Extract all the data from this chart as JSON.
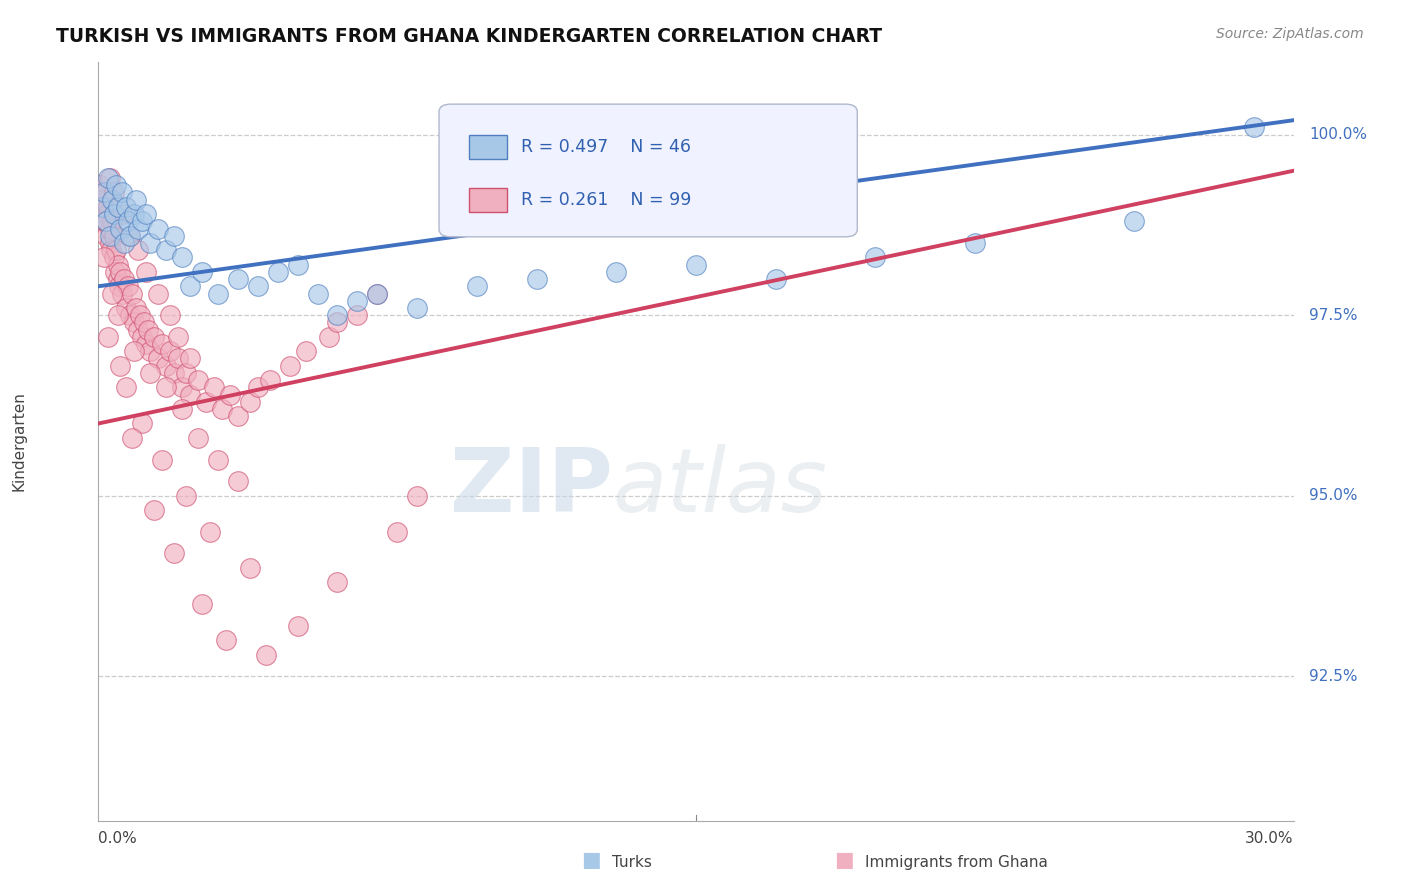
{
  "title": "TURKISH VS IMMIGRANTS FROM GHANA KINDERGARTEN CORRELATION CHART",
  "source_text": "Source: ZipAtlas.com",
  "ylabel": "Kindergarten",
  "blue_R": 0.497,
  "blue_N": 46,
  "pink_R": 0.261,
  "pink_N": 99,
  "blue_color": "#a8c8e8",
  "pink_color": "#f0b0c0",
  "blue_edge_color": "#5080c0",
  "pink_edge_color": "#d05070",
  "blue_line_color": "#4070c0",
  "pink_line_color": "#d04060",
  "watermark_zip": "ZIP",
  "watermark_atlas": "atlas",
  "x_min": 0.0,
  "x_max": 30.0,
  "y_min": 90.5,
  "y_max": 101.0,
  "y_ticks": [
    92.5,
    95.0,
    97.5,
    100.0
  ],
  "blue_points_x": [
    0.1,
    0.15,
    0.2,
    0.25,
    0.3,
    0.35,
    0.4,
    0.45,
    0.5,
    0.55,
    0.6,
    0.65,
    0.7,
    0.75,
    0.8,
    0.9,
    0.95,
    1.0,
    1.1,
    1.2,
    1.3,
    1.5,
    1.7,
    1.9,
    2.1,
    2.3,
    2.6,
    3.0,
    3.5,
    4.0,
    4.5,
    5.0,
    5.5,
    6.0,
    6.5,
    7.0,
    8.0,
    9.5,
    11.0,
    13.0,
    15.0,
    17.0,
    19.5,
    22.0,
    26.0,
    29.0
  ],
  "blue_points_y": [
    99.0,
    99.2,
    98.8,
    99.4,
    98.6,
    99.1,
    98.9,
    99.3,
    99.0,
    98.7,
    99.2,
    98.5,
    99.0,
    98.8,
    98.6,
    98.9,
    99.1,
    98.7,
    98.8,
    98.9,
    98.5,
    98.7,
    98.4,
    98.6,
    98.3,
    97.9,
    98.1,
    97.8,
    98.0,
    97.9,
    98.1,
    98.2,
    97.8,
    97.5,
    97.7,
    97.8,
    97.6,
    97.9,
    98.0,
    98.1,
    98.2,
    98.0,
    98.3,
    98.5,
    98.8,
    100.1
  ],
  "pink_points_x": [
    0.05,
    0.1,
    0.12,
    0.15,
    0.18,
    0.2,
    0.22,
    0.25,
    0.28,
    0.3,
    0.32,
    0.35,
    0.38,
    0.4,
    0.42,
    0.45,
    0.48,
    0.5,
    0.52,
    0.55,
    0.6,
    0.65,
    0.7,
    0.75,
    0.8,
    0.85,
    0.9,
    0.95,
    1.0,
    1.05,
    1.1,
    1.15,
    1.2,
    1.25,
    1.3,
    1.4,
    1.5,
    1.6,
    1.7,
    1.8,
    1.9,
    2.0,
    2.1,
    2.2,
    2.3,
    2.5,
    2.7,
    2.9,
    3.1,
    3.3,
    3.5,
    3.8,
    4.0,
    4.3,
    4.8,
    5.2,
    5.8,
    6.0,
    6.5,
    7.0,
    0.3,
    0.4,
    0.6,
    0.8,
    1.0,
    1.2,
    1.5,
    1.8,
    2.0,
    2.3,
    0.2,
    0.5,
    0.9,
    1.3,
    1.7,
    2.1,
    2.5,
    3.0,
    3.5,
    0.15,
    0.35,
    0.7,
    1.1,
    1.6,
    2.2,
    2.8,
    3.8,
    0.25,
    0.55,
    0.85,
    1.4,
    1.9,
    2.6,
    3.2,
    4.2,
    5.0,
    6.0,
    7.5,
    8.0
  ],
  "pink_points_y": [
    99.3,
    99.0,
    99.1,
    98.8,
    99.2,
    98.6,
    98.9,
    99.0,
    98.5,
    98.7,
    98.4,
    98.8,
    98.3,
    98.6,
    98.1,
    98.4,
    98.0,
    98.2,
    97.9,
    98.1,
    97.8,
    98.0,
    97.6,
    97.9,
    97.5,
    97.8,
    97.4,
    97.6,
    97.3,
    97.5,
    97.2,
    97.4,
    97.1,
    97.3,
    97.0,
    97.2,
    96.9,
    97.1,
    96.8,
    97.0,
    96.7,
    96.9,
    96.5,
    96.7,
    96.4,
    96.6,
    96.3,
    96.5,
    96.2,
    96.4,
    96.1,
    96.3,
    96.5,
    96.6,
    96.8,
    97.0,
    97.2,
    97.4,
    97.5,
    97.8,
    99.4,
    99.2,
    98.9,
    98.6,
    98.4,
    98.1,
    97.8,
    97.5,
    97.2,
    96.9,
    98.8,
    97.5,
    97.0,
    96.7,
    96.5,
    96.2,
    95.8,
    95.5,
    95.2,
    98.3,
    97.8,
    96.5,
    96.0,
    95.5,
    95.0,
    94.5,
    94.0,
    97.2,
    96.8,
    95.8,
    94.8,
    94.2,
    93.5,
    93.0,
    92.8,
    93.2,
    93.8,
    94.5,
    95.0
  ]
}
